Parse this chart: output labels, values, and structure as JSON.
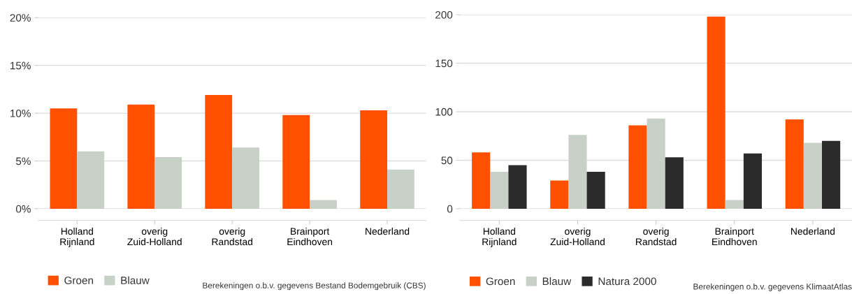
{
  "chart_data": [
    {
      "type": "bar",
      "categories": [
        "Holland\nRijnland",
        "overig\nZuid-Holland",
        "overig\nRandstad",
        "Brainport\nEindhoven",
        "Nederland"
      ],
      "series": [
        {
          "name": "Groen",
          "color": "#ff5000",
          "values": [
            10.5,
            10.9,
            11.9,
            9.8,
            10.3
          ]
        },
        {
          "name": "Blauw",
          "color": "#c8d1c8",
          "values": [
            6.0,
            5.4,
            6.4,
            0.9,
            4.1
          ]
        }
      ],
      "ylim": [
        0,
        20
      ],
      "yticks": [
        {
          "value": 0,
          "label": "0%"
        },
        {
          "value": 5,
          "label": "5%"
        },
        {
          "value": 10,
          "label": "10%"
        },
        {
          "value": 15,
          "label": "15%"
        },
        {
          "value": 20,
          "label": "20%"
        }
      ],
      "grid": "y",
      "legend": "bottom left",
      "annotations": [
        "Berekeningen o.b.v. gegevens Bestand Bodemgebruik (CBS)"
      ]
    },
    {
      "type": "bar",
      "categories": [
        "Holland\nRijnland",
        "overig\nZuid-Holland",
        "overig\nRandstad",
        "Brainport\nEindhoven",
        "Nederland"
      ],
      "series": [
        {
          "name": "Groen",
          "color": "#ff5000",
          "values": [
            58,
            29,
            86,
            198,
            92
          ]
        },
        {
          "name": "Blauw",
          "color": "#c8d1c8",
          "values": [
            38,
            76,
            93,
            9,
            68
          ]
        },
        {
          "name": "Natura 2000",
          "color": "#2b2b2b",
          "values": [
            45,
            38,
            53,
            57,
            70
          ]
        }
      ],
      "ylim": [
        0,
        200
      ],
      "yticks": [
        0,
        50,
        100,
        150,
        200
      ],
      "grid": "y",
      "legend": "bottom left",
      "annotations": [
        "Berekeningen o.b.v. gegevens KlimaatAtlas"
      ]
    }
  ]
}
